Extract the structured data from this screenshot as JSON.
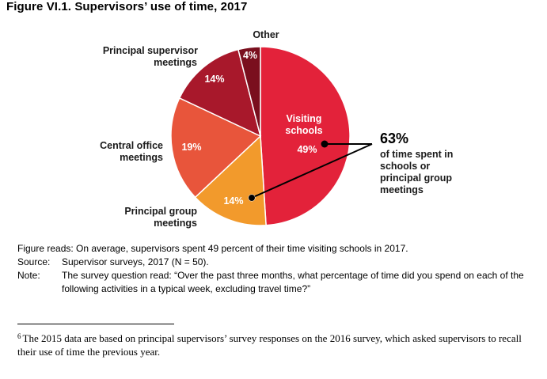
{
  "figure_title": "Figure VI.1. Supervisors’ use of time, 2017",
  "chart_data": {
    "type": "pie",
    "title": "Figure VI.1. Supervisors’ use of time, 2017",
    "slices": [
      {
        "label": "Visiting schools",
        "value": 49,
        "display": "49%",
        "color": "#e3223a"
      },
      {
        "label": "Principal group meetings",
        "value": 14,
        "display": "14%",
        "color": "#f29a2c"
      },
      {
        "label": "Central office meetings",
        "value": 19,
        "display": "19%",
        "color": "#e8553b"
      },
      {
        "label": "Principal supervisor meetings",
        "value": 14,
        "display": "14%",
        "color": "#a8182b"
      },
      {
        "label": "Other",
        "value": 4,
        "display": "4%",
        "color": "#7a0f1e"
      }
    ],
    "annotation": {
      "value": "63%",
      "text": [
        "of time spent in",
        "schools or",
        "principal group",
        "meetings"
      ]
    }
  },
  "labels": {
    "visiting": [
      "Visiting",
      "schools"
    ],
    "principal_group": [
      "Principal group",
      "meetings"
    ],
    "central_office": [
      "Central office",
      "meetings"
    ],
    "principal_supervisor": [
      "Principal supervisor",
      "meetings"
    ],
    "other": [
      "Other"
    ]
  },
  "notes": {
    "figure_reads": "Figure reads: On average, supervisors spent 49 percent of their time visiting schools in 2017.",
    "source_key": "Source:",
    "source_val": "Supervisor surveys, 2017 (N = 50).",
    "note_key": "Note:",
    "note_val": "The survey question read: “Over the past three months, what percentage of time did you spend on each of the following activities in a typical week, excluding travel time?”"
  },
  "footnote": {
    "number": "6",
    "text": "The 2015 data are based on principal supervisors’ survey responses on the 2016 survey, which asked supervisors to recall their use of time the previous year."
  }
}
